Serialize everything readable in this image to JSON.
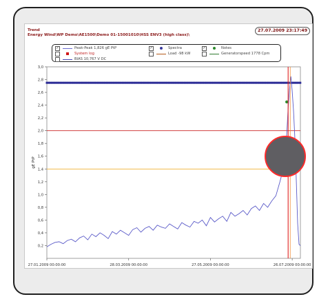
{
  "header": {
    "title_line1": "Trend",
    "title_line2": "Energy Wind\\WP Demo\\AE1500\\Demo 01-15001010\\HSS ENV3 (high class)\\",
    "timestamp": "27.07.2009 23:17:49"
  },
  "legend": [
    {
      "label": "Peak-Peak 1,826 gE PtP",
      "checked": true,
      "color": "#6b6bcf",
      "marker": "line",
      "checkmark": "✓"
    },
    {
      "label": "Spectra",
      "checked": true,
      "color": "#3a3a9e",
      "marker": "diamond",
      "checkmark": "✓"
    },
    {
      "label": "Notes",
      "checked": true,
      "color": "#2e8b2e",
      "marker": "dot",
      "checkmark": "✓"
    },
    {
      "label": "System log",
      "checked": false,
      "color": "#d01818",
      "marker": "square",
      "checkmark": ""
    },
    {
      "label": "Load -98 kW",
      "checked": false,
      "color": "#b35a1a",
      "marker": "line",
      "checkmark": ""
    },
    {
      "label": "Generatorspeed 1778 Cpm",
      "checked": false,
      "color": "#2e7a2e",
      "marker": "line",
      "checkmark": ""
    },
    {
      "label": "BIAS 10,767 V DC",
      "checked": false,
      "color": "#4a4ab8",
      "marker": "line",
      "checkmark": ""
    }
  ],
  "chart_data": {
    "type": "line",
    "ylabel": "gE PtP",
    "ylim": [
      0.0,
      3.0
    ],
    "yticks": [
      "3,0",
      "2,8",
      "2,6",
      "2,4",
      "2,2",
      "2,0",
      "1,8",
      "1,6",
      "1,4",
      "1,2",
      "1,0",
      "0,8",
      "0,6",
      "0,4",
      "0,2"
    ],
    "xticks": [
      "27.01.2009 00:00:00",
      "28.03.2009 00:00:00",
      "27.05.2009 00:00:00",
      "26.07.2009 00:00:00"
    ],
    "x_range_days": [
      0,
      186
    ],
    "alarm_levels": [
      {
        "value": 2.0,
        "color": "#cc2222"
      },
      {
        "value": 1.4,
        "color": "#f0b030"
      }
    ],
    "spectra_level": 2.75,
    "notes_point": {
      "x": 176,
      "y": 2.45
    },
    "cursor_x": 177,
    "series": [
      {
        "name": "Peak-Peak 1,826 gE PtP",
        "color": "#5a5ac8",
        "x": [
          0,
          3,
          6,
          9,
          12,
          15,
          18,
          21,
          24,
          27,
          30,
          33,
          36,
          39,
          42,
          45,
          48,
          51,
          54,
          57,
          60,
          63,
          66,
          69,
          72,
          75,
          78,
          81,
          84,
          87,
          90,
          93,
          96,
          99,
          102,
          105,
          108,
          111,
          114,
          117,
          120,
          123,
          126,
          129,
          132,
          135,
          138,
          141,
          144,
          147,
          150,
          153,
          156,
          159,
          162,
          165,
          168,
          171,
          174,
          176,
          177,
          178,
          179,
          180,
          181,
          182,
          183,
          184,
          185,
          186
        ],
        "values": [
          0.18,
          0.22,
          0.25,
          0.26,
          0.23,
          0.28,
          0.3,
          0.26,
          0.32,
          0.35,
          0.29,
          0.38,
          0.34,
          0.4,
          0.36,
          0.31,
          0.42,
          0.38,
          0.44,
          0.4,
          0.36,
          0.45,
          0.48,
          0.41,
          0.47,
          0.5,
          0.44,
          0.52,
          0.49,
          0.47,
          0.54,
          0.5,
          0.46,
          0.56,
          0.52,
          0.49,
          0.58,
          0.55,
          0.6,
          0.51,
          0.64,
          0.57,
          0.62,
          0.66,
          0.58,
          0.72,
          0.66,
          0.7,
          0.75,
          0.68,
          0.78,
          0.82,
          0.75,
          0.86,
          0.8,
          0.9,
          0.98,
          1.2,
          1.45,
          1.95,
          2.35,
          2.65,
          2.85,
          2.62,
          2.3,
          1.85,
          1.2,
          0.55,
          0.22,
          0.2
        ]
      }
    ]
  }
}
